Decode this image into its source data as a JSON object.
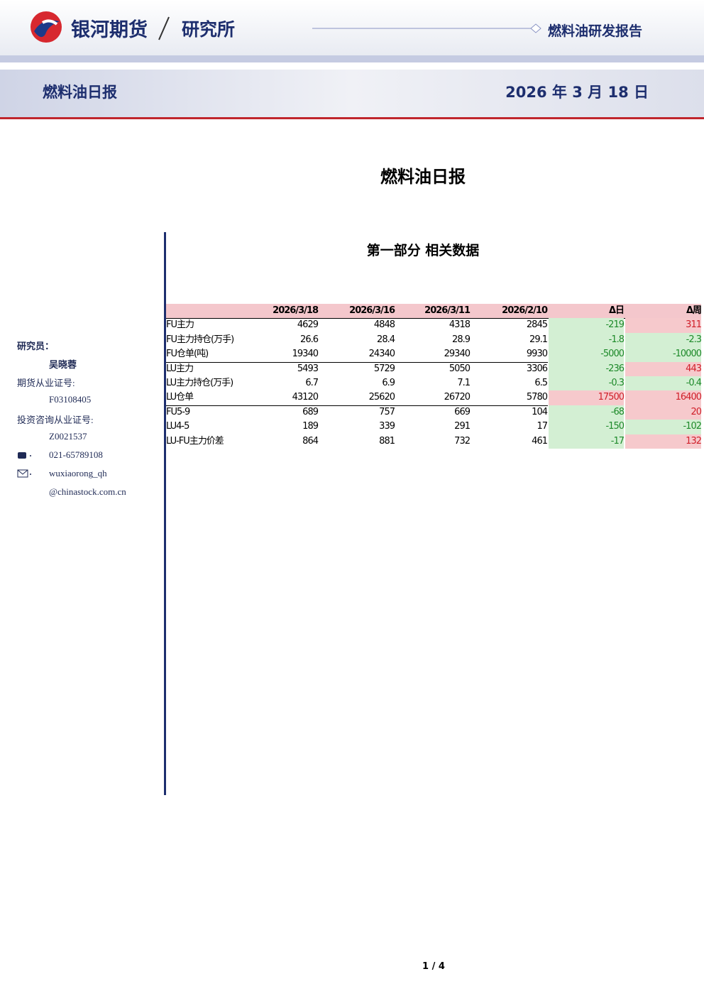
{
  "header": {
    "brand": "银河期货",
    "department": "研究所",
    "report_type": "燃料油研发报告"
  },
  "banner": {
    "title": "燃料油日报",
    "date": "2026 年 3 月 18 日"
  },
  "document": {
    "title": "燃料油日报"
  },
  "section": {
    "title": "第一部分 相关数据"
  },
  "table": {
    "columns": [
      "",
      "2026/3/18",
      "2026/3/16",
      "2026/3/11",
      "2026/2/10",
      "Δ日",
      "Δ周"
    ],
    "rows": [
      [
        "FU主力",
        "4629",
        "4848",
        "4318",
        "2845",
        "-219",
        "311"
      ],
      [
        "FU主力持仓(万手)",
        "26.6",
        "28.4",
        "28.9",
        "29.1",
        "-1.8",
        "-2.3"
      ],
      [
        "FU仓单(吨)",
        "19340",
        "24340",
        "29340",
        "9930",
        "-5000",
        "-10000"
      ],
      [
        "LU主力",
        "5493",
        "5729",
        "5050",
        "3306",
        "-236",
        "443"
      ],
      [
        "LU主力持仓(万手)",
        "6.7",
        "6.9",
        "7.1",
        "6.5",
        "-0.3",
        "-0.4"
      ],
      [
        "LU仓单",
        "43120",
        "25620",
        "26720",
        "5780",
        "17500",
        "16400"
      ],
      [
        "FU5-9",
        "689",
        "757",
        "669",
        "104",
        "-68",
        "20"
      ],
      [
        "LU4-5",
        "189",
        "339",
        "291",
        "17",
        "-150",
        "-102"
      ],
      [
        "LU-FU主力价差",
        "864",
        "881",
        "732",
        "461",
        "-17",
        "132"
      ]
    ]
  },
  "sidebar": {
    "role": "研究员：",
    "name": "吴晓蓉",
    "license_label": "期货从业证号:",
    "license": "F03108405",
    "advisor_label": "投资咨询从业证号:",
    "advisor": "Z0021537",
    "phone": "021-65789108",
    "email_user": "wuxiaorong_qh",
    "email_domain": "@chinastock.com.cn"
  },
  "footer": {
    "page": "1 / 4"
  }
}
